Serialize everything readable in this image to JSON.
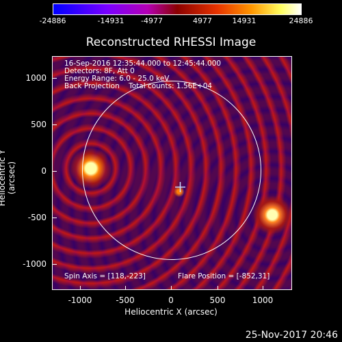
{
  "colorbar": {
    "ticks": [
      "-24886",
      "-14931",
      "-4977",
      "4977",
      "14931",
      "24886"
    ]
  },
  "title": "Reconstructed RHESSI Image",
  "info_lines": [
    "16-Sep-2016 12:35:44.000 to 12:45:44.000",
    "Detectors: 8F, Att 0",
    "Energy Range: 6.0 - 25.0 keV",
    "Back Projection    Total counts: 1.56E+04"
  ],
  "footer_left": "Spin Axis = [118,-223]",
  "footer_right": "Flare Position = [-852,31]",
  "axes": {
    "xlabel": "Heliocentric X (arcsec)",
    "ylabel": "Heliocentric Y (arcsec)",
    "xticks": [
      "-1000",
      "-500",
      "0",
      "500",
      "1000"
    ],
    "yticks": [
      "1000",
      "500",
      "0",
      "-500",
      "-1000"
    ]
  },
  "date_stamp": "25-Nov-2017 20:46",
  "colors": {
    "background": "#000000",
    "foreground": "#ffffff"
  }
}
